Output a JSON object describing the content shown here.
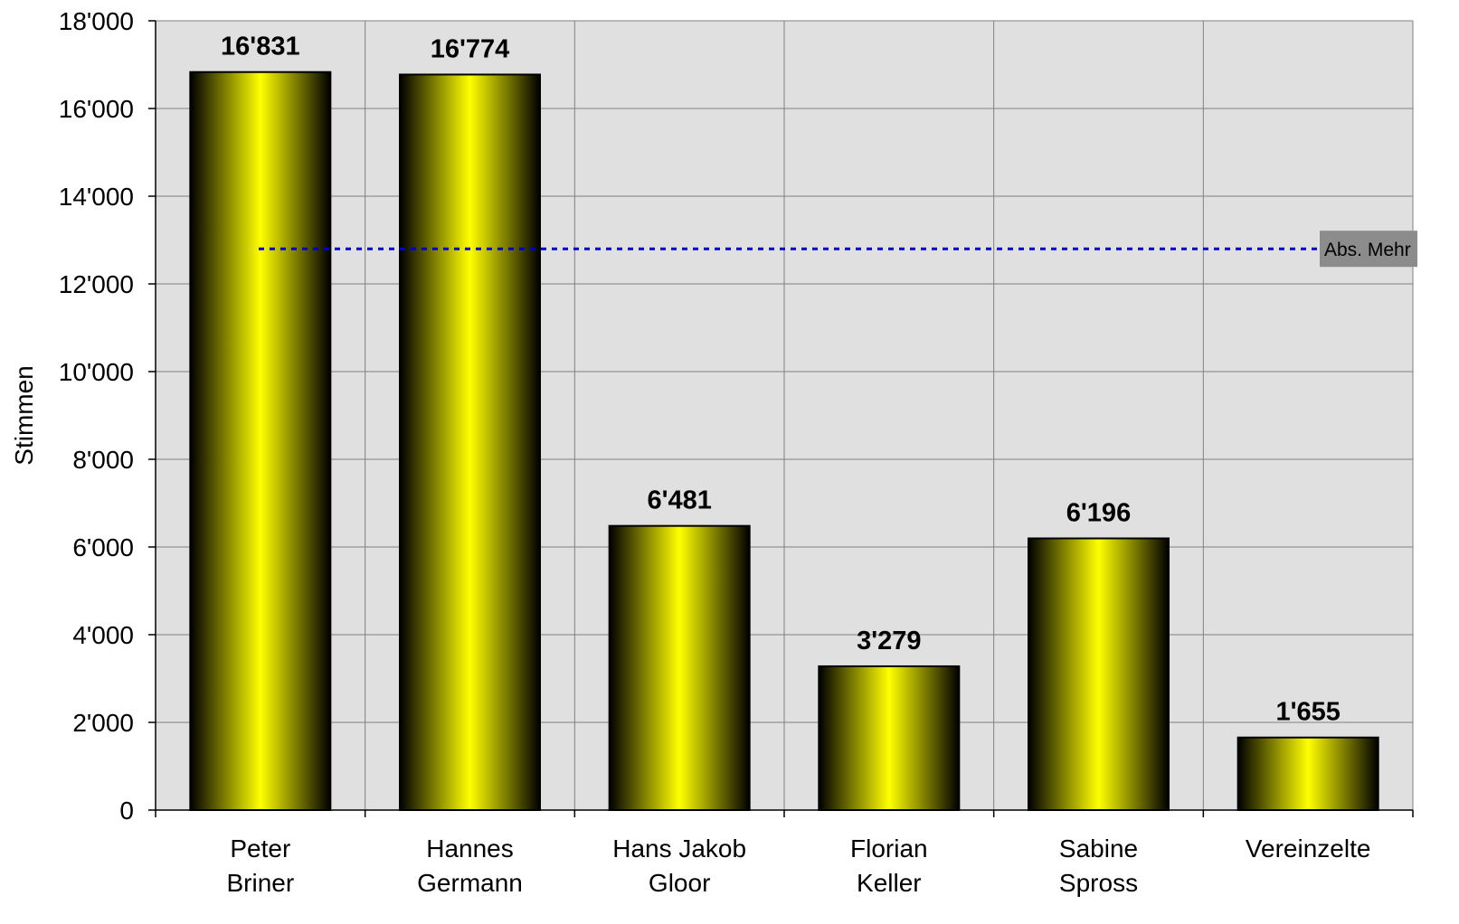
{
  "chart_data": {
    "type": "bar",
    "title": "",
    "xlabel": "",
    "ylabel": "Stimmen",
    "categories": [
      [
        "Peter",
        "Briner"
      ],
      [
        "Hannes",
        "Germann"
      ],
      [
        "Hans Jakob",
        "Gloor"
      ],
      [
        "Florian",
        "Keller"
      ],
      [
        "Sabine",
        "Spross"
      ],
      [
        "Vereinzelte"
      ]
    ],
    "values": [
      16831,
      16774,
      6481,
      3279,
      6196,
      1655
    ],
    "value_labels": [
      "16'831",
      "16'774",
      "6'481",
      "3'279",
      "6'196",
      "1'655"
    ],
    "ylim": [
      0,
      18000
    ],
    "yticks": [
      0,
      2000,
      4000,
      6000,
      8000,
      10000,
      12000,
      14000,
      16000,
      18000
    ],
    "ytick_labels": [
      "0",
      "2'000",
      "4'000",
      "6'000",
      "8'000",
      "10'000",
      "12'000",
      "14'000",
      "16'000",
      "18'000"
    ],
    "grid": true,
    "reference_line": {
      "label": "Abs. Mehr",
      "value": 12800,
      "color": "#0000cc"
    },
    "colors": {
      "bar_center": "#ffff00",
      "bar_edge": "#000000",
      "plot_bg": "#e0e0e0",
      "grid": "#808080",
      "label_bg": "#8c8c8c"
    }
  }
}
